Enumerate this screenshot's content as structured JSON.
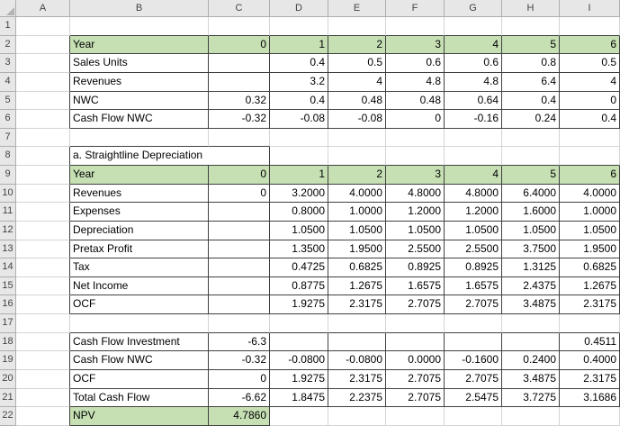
{
  "spreadsheet": {
    "colors": {
      "green_fill": "#c6e0b4",
      "header_bg": "#e7e7e7",
      "gridline": "#d4d4d4",
      "cell_border": "#404040",
      "header_text": "#444444"
    },
    "columns": [
      "A",
      "B",
      "C",
      "D",
      "E",
      "F",
      "G",
      "H",
      "I"
    ],
    "row_count": 22,
    "cells": {
      "2": [
        "Year",
        "0",
        "1",
        "2",
        "3",
        "4",
        "5",
        "6"
      ],
      "3": [
        "Sales Units",
        "",
        "0.4",
        "0.5",
        "0.6",
        "0.6",
        "0.8",
        "0.5"
      ],
      "4": [
        "Revenues",
        "",
        "3.2",
        "4",
        "4.8",
        "4.8",
        "6.4",
        "4"
      ],
      "5": [
        "NWC",
        "0.32",
        "0.4",
        "0.48",
        "0.48",
        "0.64",
        "0.4",
        "0"
      ],
      "6": [
        "Cash Flow NWC",
        "-0.32",
        "-0.08",
        "-0.08",
        "0",
        "-0.16",
        "0.24",
        "0.4"
      ],
      "8": [
        "a. Straightline Depreciation"
      ],
      "9": [
        "Year",
        "0",
        "1",
        "2",
        "3",
        "4",
        "5",
        "6"
      ],
      "10": [
        "Revenues",
        "0",
        "3.2000",
        "4.0000",
        "4.8000",
        "4.8000",
        "6.4000",
        "4.0000"
      ],
      "11": [
        "Expenses",
        "",
        "0.8000",
        "1.0000",
        "1.2000",
        "1.2000",
        "1.6000",
        "1.0000"
      ],
      "12": [
        "Depreciation",
        "",
        "1.0500",
        "1.0500",
        "1.0500",
        "1.0500",
        "1.0500",
        "1.0500"
      ],
      "13": [
        "Pretax Profit",
        "",
        "1.3500",
        "1.9500",
        "2.5500",
        "2.5500",
        "3.7500",
        "1.9500"
      ],
      "14": [
        "Tax",
        "",
        "0.4725",
        "0.6825",
        "0.8925",
        "0.8925",
        "1.3125",
        "0.6825"
      ],
      "15": [
        "Net Income",
        "",
        "0.8775",
        "1.2675",
        "1.6575",
        "1.6575",
        "2.4375",
        "1.2675"
      ],
      "16": [
        "OCF",
        "",
        "1.9275",
        "2.3175",
        "2.7075",
        "2.7075",
        "3.4875",
        "2.3175"
      ],
      "18": [
        "Cash Flow Investment",
        "-6.3",
        "",
        "",
        "",
        "",
        "",
        "0.4511"
      ],
      "19": [
        "Cash Flow NWC",
        "-0.32",
        "-0.0800",
        "-0.0800",
        "0.0000",
        "-0.1600",
        "0.2400",
        "0.4000"
      ],
      "20": [
        "OCF",
        "0",
        "1.9275",
        "2.3175",
        "2.7075",
        "2.7075",
        "3.4875",
        "2.3175"
      ],
      "21": [
        "Total Cash Flow",
        "-6.62",
        "1.8475",
        "2.2375",
        "2.7075",
        "2.5475",
        "3.7275",
        "3.1686"
      ],
      "22": [
        "NPV",
        "4.7860"
      ]
    },
    "green_regions": [
      {
        "row": 2,
        "c1": "B",
        "c2": "I"
      },
      {
        "row": 9,
        "c1": "B",
        "c2": "I"
      },
      {
        "row": 22,
        "c1": "B",
        "c2": "C"
      }
    ],
    "border_regions": [
      {
        "r1": 2,
        "r2": 6,
        "c1": "B",
        "c2": "I"
      },
      {
        "r1": 8,
        "r2": 8,
        "c1": "B",
        "c2": "C"
      },
      {
        "r1": 9,
        "r2": 16,
        "c1": "B",
        "c2": "I"
      },
      {
        "r1": 18,
        "r2": 21,
        "c1": "B",
        "c2": "I"
      },
      {
        "r1": 22,
        "r2": 22,
        "c1": "B",
        "c2": "C"
      }
    ],
    "merged_cells": [
      {
        "row": 8,
        "col": "B",
        "span": 2
      }
    ]
  }
}
